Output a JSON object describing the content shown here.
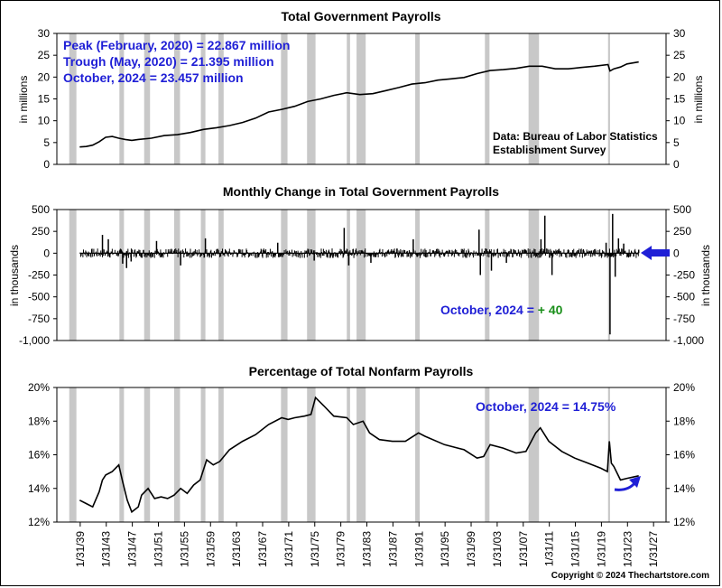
{
  "copyright": "Copyright © 2024 Thechartstore.com",
  "colors": {
    "recession": "#c8c8c8",
    "series": "#000000",
    "annotation": "#1f1fd6",
    "positive": "#1a8f1a",
    "arrow": "#1f1fd6"
  },
  "x_ticks": [
    "1/31/39",
    "1/31/43",
    "1/31/47",
    "1/31/51",
    "1/31/55",
    "1/31/59",
    "1/31/63",
    "1/31/67",
    "1/31/71",
    "1/31/75",
    "1/31/79",
    "1/31/83",
    "1/31/87",
    "1/31/91",
    "1/31/95",
    "1/31/99",
    "1/31/03",
    "1/31/07",
    "1/31/11",
    "1/31/15",
    "1/31/19",
    "1/31/23",
    "1/31/27"
  ],
  "recessions": [
    [
      1937.4,
      1938.5
    ],
    [
      1945.1,
      1945.8
    ],
    [
      1948.9,
      1949.8
    ],
    [
      1953.5,
      1954.4
    ],
    [
      1957.6,
      1958.3
    ],
    [
      1960.3,
      1961.1
    ],
    [
      1969.9,
      1970.9
    ],
    [
      1973.9,
      1975.2
    ],
    [
      1980.0,
      1980.5
    ],
    [
      1981.5,
      1982.9
    ],
    [
      1990.5,
      1991.2
    ],
    [
      2001.2,
      2001.9
    ],
    [
      2007.9,
      2009.5
    ],
    [
      2020.1,
      2020.4
    ]
  ],
  "chart_data": [
    {
      "type": "line",
      "title": "Total Government Payrolls",
      "ylabel": "in millions",
      "ylim": [
        0,
        30
      ],
      "yticks": [
        "0",
        "5",
        "10",
        "15",
        "20",
        "25",
        "30"
      ],
      "annotations": [
        "Peak (February, 2020) = 22.867 million",
        "Trough (May, 2020) = 21.395 million",
        "October, 2024 = 23.457 million"
      ],
      "source": [
        "Data:  Bureau of Labor Statistics",
        "Establishment Survey"
      ],
      "series": [
        {
          "x": [
            1939.0,
            1940.0,
            1941.0,
            1942.0,
            1943.0,
            1944.0,
            1945.0,
            1946.0,
            1947.0,
            1948.0,
            1950.0,
            1952.0,
            1954.0,
            1956.0,
            1958.0,
            1960.0,
            1962.0,
            1964.0,
            1966.0,
            1968.0,
            1970.0,
            1972.0,
            1974.0,
            1976.0,
            1978.0,
            1980.0,
            1982.0,
            1984.0,
            1986.0,
            1988.0,
            1990.0,
            1992.0,
            1994.0,
            1996.0,
            1998.0,
            2000.0,
            2002.0,
            2004.0,
            2006.0,
            2008.0,
            2010.0,
            2012.0,
            2014.0,
            2016.0,
            2018.0,
            2020.1,
            2020.4,
            2021.0,
            2022.0,
            2023.0,
            2024.8
          ],
          "y": [
            4.0,
            4.1,
            4.4,
            5.2,
            6.2,
            6.4,
            6.0,
            5.7,
            5.5,
            5.7,
            6.0,
            6.6,
            6.8,
            7.3,
            8.0,
            8.4,
            8.9,
            9.6,
            10.6,
            12.0,
            12.6,
            13.3,
            14.4,
            15.0,
            15.8,
            16.4,
            16.0,
            16.2,
            16.9,
            17.6,
            18.4,
            18.7,
            19.3,
            19.6,
            19.9,
            20.8,
            21.5,
            21.7,
            22.0,
            22.5,
            22.5,
            21.9,
            21.9,
            22.2,
            22.5,
            22.867,
            21.395,
            21.9,
            22.3,
            23.0,
            23.457
          ]
        }
      ]
    },
    {
      "type": "bar",
      "title": "Monthly Change in Total Government Payrolls",
      "ylabel": "in thousands",
      "ylim": [
        -1000,
        500
      ],
      "yticks": [
        "500",
        "250",
        "0",
        "-250",
        "-500",
        "-750",
        "-1,000"
      ],
      "annotation_label": "October, 2024 = ",
      "annotation_value": "+ 40",
      "spikes": {
        "x": [
          1942.5,
          1943.4,
          1945.6,
          1946.2,
          1946.9,
          1950.8,
          1954.5,
          1958.3,
          1969.4,
          1975.0,
          1979.6,
          1980.3,
          1983.7,
          1990.2,
          2000.3,
          2000.5,
          2002.2,
          2004.5,
          2009.8,
          2010.4,
          2011.5,
          2019.8,
          2020.3,
          2020.4,
          2020.8,
          2021.2,
          2021.7,
          2022.5,
          2024.8
        ],
        "y": [
          210,
          160,
          -120,
          -170,
          -95,
          140,
          -140,
          170,
          120,
          -85,
          290,
          -140,
          -110,
          160,
          270,
          -250,
          -200,
          -110,
          160,
          430,
          -250,
          120,
          -30,
          -930,
          450,
          -270,
          170,
          110,
          40
        ]
      }
    },
    {
      "type": "line",
      "title": "Percentage of Total Nonfarm Payrolls",
      "ylim": [
        12,
        20
      ],
      "yticks": [
        "20%",
        "18%",
        "16%",
        "14%",
        "12%"
      ],
      "annotations": [
        "October, 2024 = 14.75%"
      ],
      "series": [
        {
          "x": [
            1939.0,
            1940.0,
            1941.0,
            1942.0,
            1942.5,
            1943.0,
            1944.0,
            1945.0,
            1945.6,
            1946.3,
            1947.0,
            1948.0,
            1948.5,
            1949.5,
            1950.5,
            1951.5,
            1952.5,
            1953.5,
            1954.5,
            1955.5,
            1956.5,
            1957.5,
            1958.5,
            1959.5,
            1960.5,
            1962.0,
            1964.0,
            1966.0,
            1968.0,
            1970.0,
            1971.0,
            1972.0,
            1973.5,
            1974.5,
            1975.2,
            1976.5,
            1978.0,
            1980.0,
            1981.0,
            1982.5,
            1983.5,
            1985.0,
            1987.0,
            1989.0,
            1991.0,
            1992.0,
            1995.0,
            1998.0,
            2000.0,
            2001.0,
            2002.0,
            2004.0,
            2006.0,
            2007.5,
            2009.0,
            2009.7,
            2011.0,
            2013.0,
            2015.0,
            2017.0,
            2019.0,
            2020.0,
            2020.3,
            2020.6,
            2021.0,
            2022.0,
            2023.0,
            2024.8
          ],
          "y": [
            13.3,
            13.1,
            12.9,
            13.8,
            14.5,
            14.8,
            15.0,
            15.4,
            14.4,
            13.3,
            12.6,
            12.9,
            13.6,
            14.0,
            13.4,
            13.5,
            13.4,
            13.6,
            14.0,
            13.7,
            14.2,
            14.5,
            15.7,
            15.4,
            15.6,
            16.3,
            16.8,
            17.2,
            17.8,
            18.2,
            18.1,
            18.2,
            18.3,
            18.4,
            19.4,
            18.9,
            18.3,
            18.2,
            17.8,
            18.0,
            17.3,
            16.9,
            16.8,
            16.8,
            17.3,
            17.1,
            16.6,
            16.3,
            15.8,
            15.9,
            16.6,
            16.4,
            16.1,
            16.2,
            17.3,
            17.6,
            16.8,
            16.2,
            15.8,
            15.5,
            15.2,
            15.0,
            16.8,
            15.5,
            15.3,
            14.5,
            14.6,
            14.75
          ]
        }
      ]
    }
  ]
}
